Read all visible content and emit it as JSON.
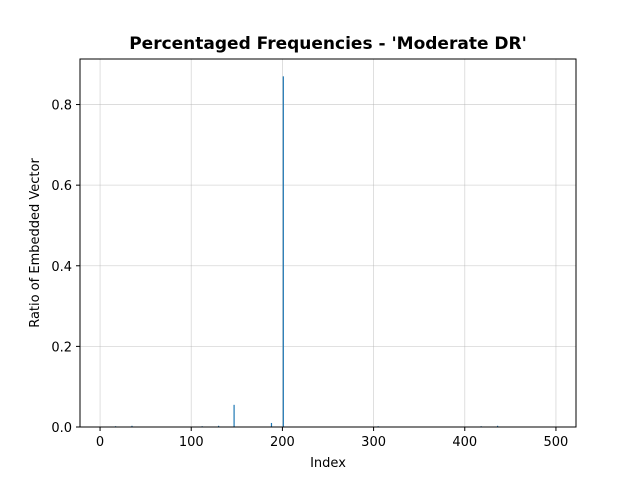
{
  "chart_data": {
    "type": "bar",
    "title": "Percentaged Frequencies - 'Moderate DR'",
    "xlabel": "Index",
    "ylabel": "Ratio of Embedded Vector",
    "xlim": [
      -22,
      522
    ],
    "ylim": [
      0,
      0.913
    ],
    "xticks": [
      0,
      100,
      200,
      300,
      400,
      500
    ],
    "yticks": [
      0.0,
      0.2,
      0.4,
      0.6,
      0.8
    ],
    "ytick_labels": [
      "0.0",
      "0.2",
      "0.4",
      "0.6",
      "0.8"
    ],
    "grid": true,
    "bar_color": "#1f77b4",
    "points": [
      {
        "x": 17,
        "y": 0.002
      },
      {
        "x": 35,
        "y": 0.003
      },
      {
        "x": 112,
        "y": 0.002
      },
      {
        "x": 130,
        "y": 0.003
      },
      {
        "x": 147,
        "y": 0.055
      },
      {
        "x": 188,
        "y": 0.01
      },
      {
        "x": 201,
        "y": 0.87
      },
      {
        "x": 305,
        "y": 0.002
      },
      {
        "x": 418,
        "y": 0.002
      },
      {
        "x": 436,
        "y": 0.003
      }
    ]
  }
}
